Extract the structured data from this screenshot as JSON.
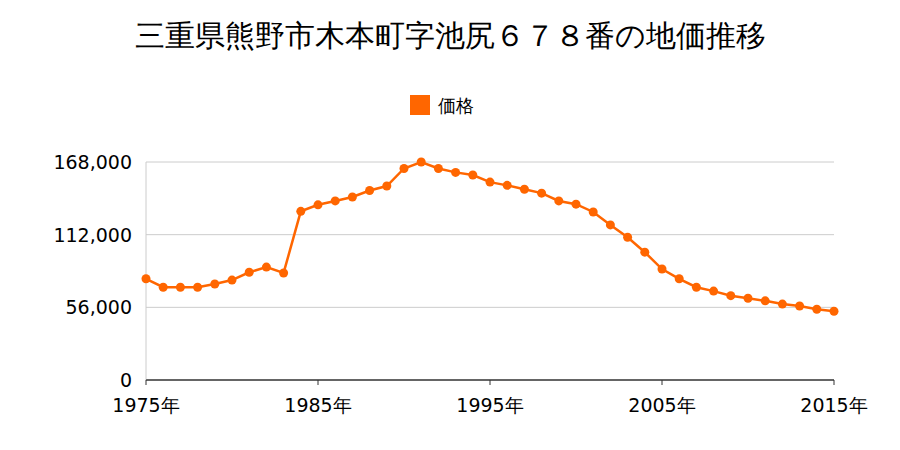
{
  "chart_data": {
    "type": "line",
    "title": "三重県熊野市木本町字池尻６７８番の地価推移",
    "x": [
      1975,
      1976,
      1977,
      1978,
      1979,
      1980,
      1981,
      1982,
      1983,
      1984,
      1985,
      1986,
      1987,
      1988,
      1989,
      1990,
      1991,
      1992,
      1993,
      1994,
      1995,
      1996,
      1997,
      1998,
      1999,
      2000,
      2001,
      2002,
      2003,
      2004,
      2005,
      2006,
      2007,
      2008,
      2009,
      2010,
      2011,
      2012,
      2013,
      2014,
      2015
    ],
    "series": [
      {
        "name": "価格",
        "color": "#ff6600",
        "marker": "circle",
        "values": [
          78000,
          71500,
          71500,
          71500,
          74000,
          77000,
          83000,
          87000,
          82500,
          130000,
          135000,
          138000,
          141000,
          146000,
          149500,
          163000,
          168000,
          163000,
          160000,
          158000,
          152500,
          150000,
          147000,
          144000,
          138000,
          135500,
          129500,
          119500,
          110000,
          98500,
          85500,
          78000,
          71500,
          68500,
          65000,
          63000,
          61000,
          58500,
          57000,
          54500,
          53000
        ]
      }
    ],
    "xlim": [
      1975,
      2015
    ],
    "xticks": [
      {
        "value": 1975,
        "label": "1975年"
      },
      {
        "value": 1985,
        "label": "1985年"
      },
      {
        "value": 1995,
        "label": "1995年"
      },
      {
        "value": 2005,
        "label": "2005年"
      },
      {
        "value": 2015,
        "label": "2015年"
      }
    ],
    "ylim": [
      0,
      168000
    ],
    "yticks": [
      0,
      {
        "value": 56000,
        "label": "56,000"
      },
      {
        "value": 112000,
        "label": "112,000"
      },
      {
        "value": 168000,
        "label": "168,000"
      }
    ],
    "grid": true,
    "legend": "top"
  }
}
